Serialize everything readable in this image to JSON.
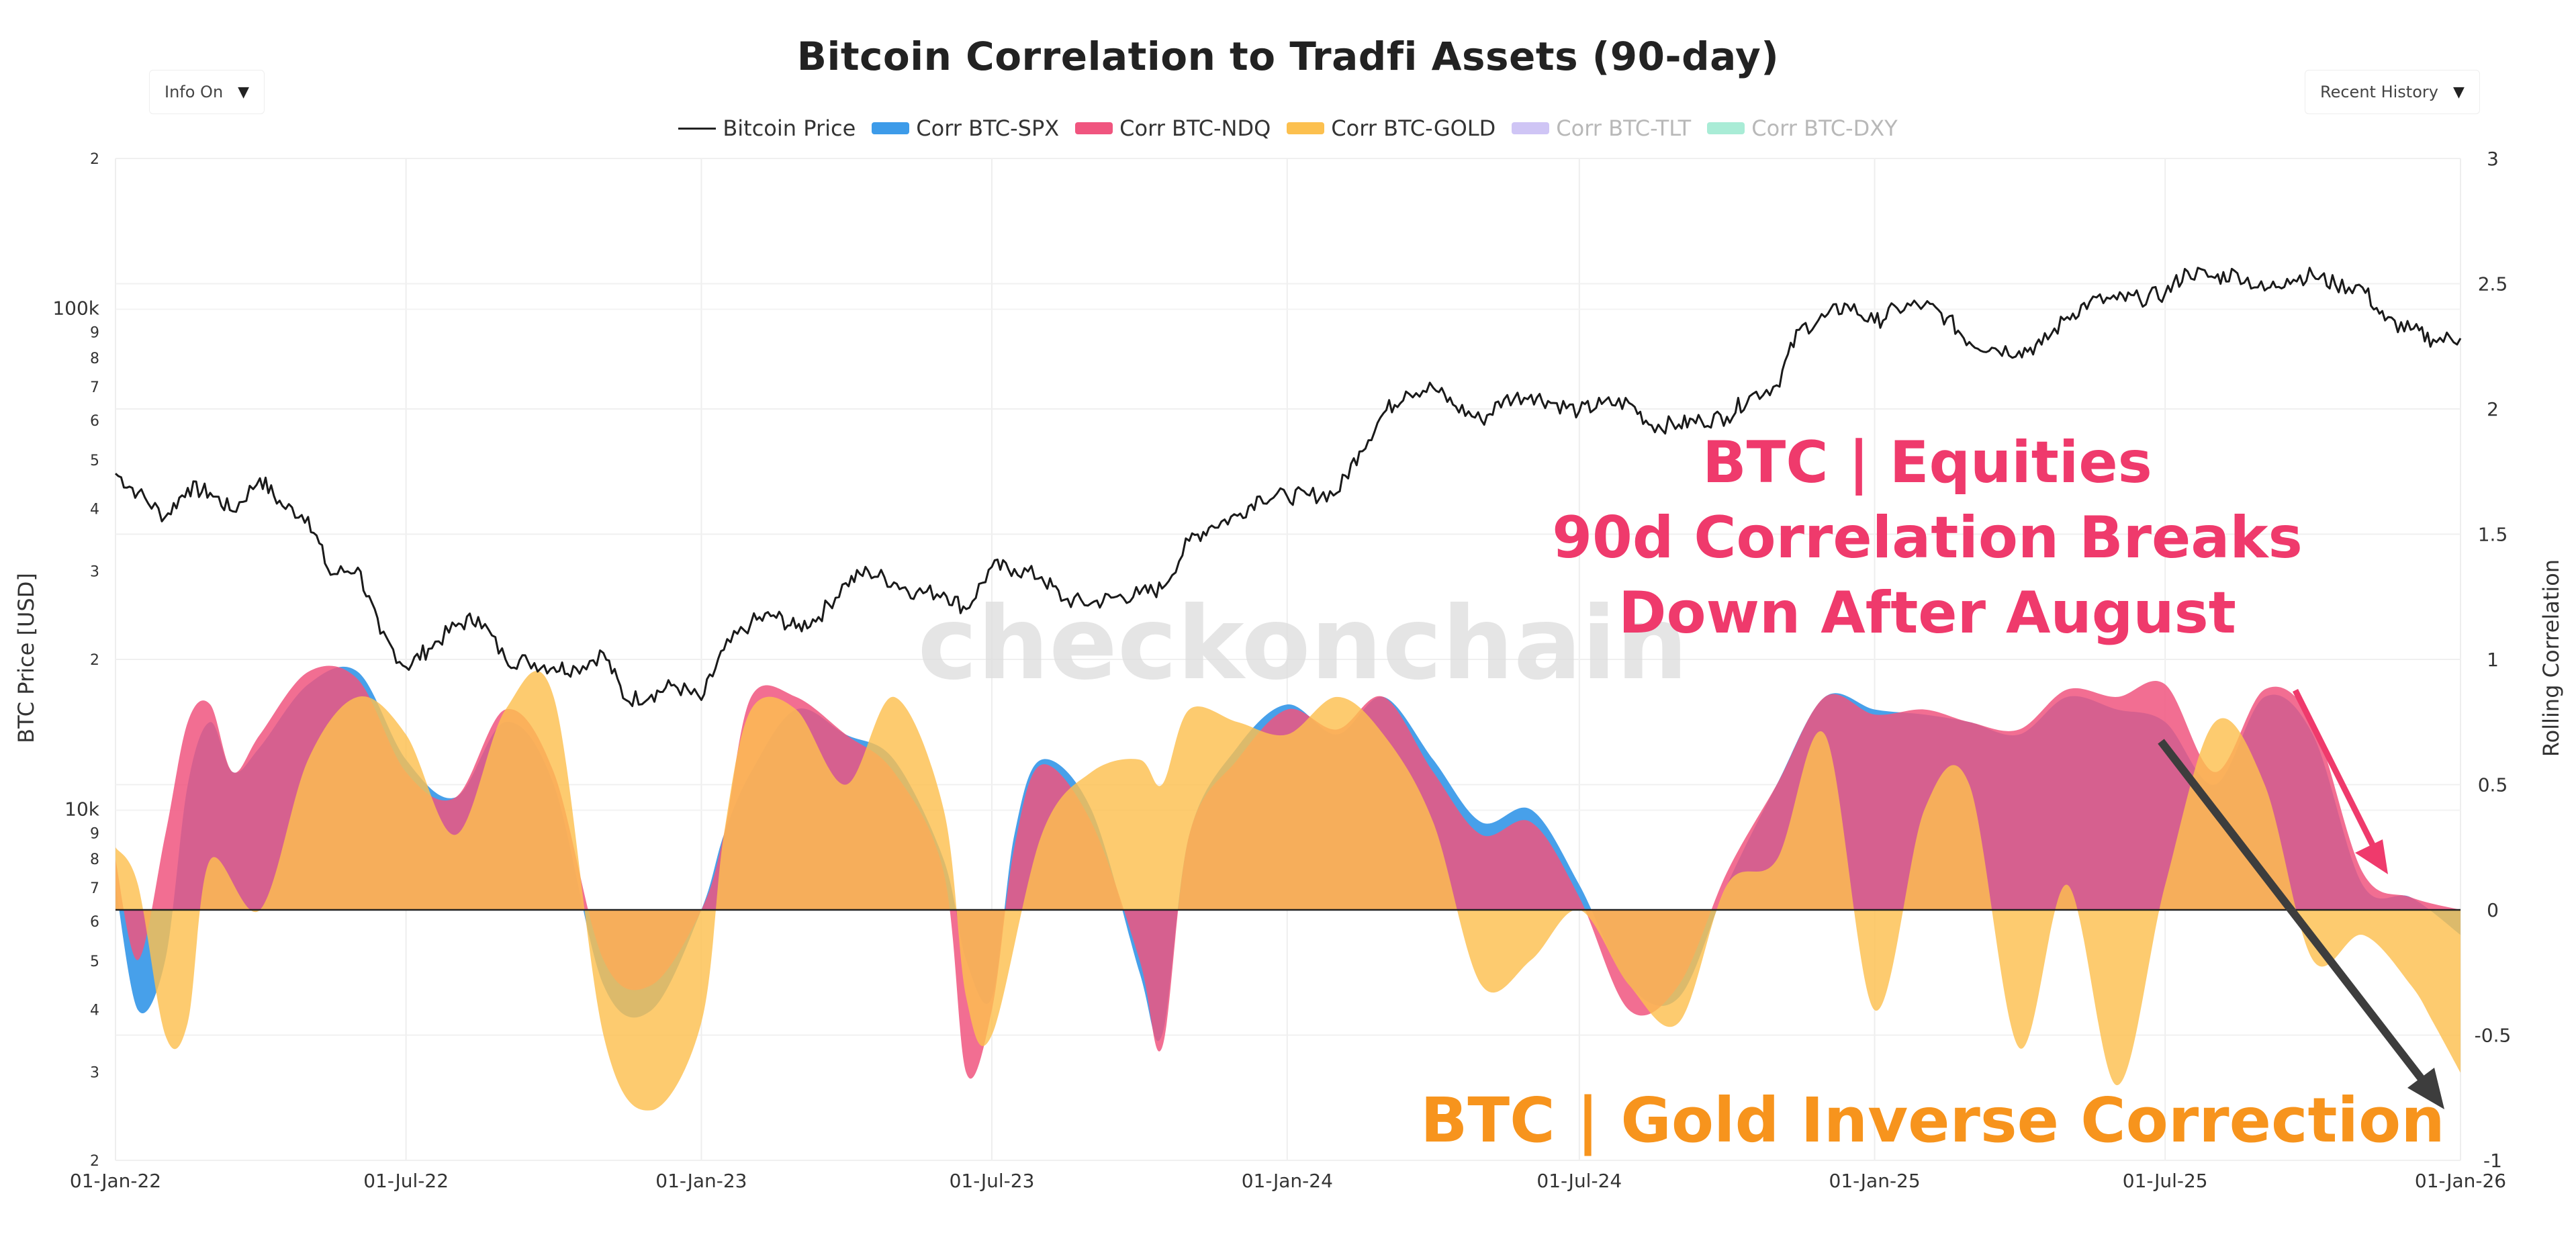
{
  "controls": {
    "info_label": "Info On",
    "history_label": "Recent History"
  },
  "watermark": "checkonchain",
  "colors": {
    "price": "#1a1a1a",
    "spx": "#3d9be9",
    "ndq": "#f0557f",
    "gold": "#fcc04f",
    "tlt": "#cfc5f5",
    "dxy": "#a9ecd6",
    "annotation_pink": "#ef3a6c",
    "annotation_orange": "#f7941d",
    "arrow_dark": "#3d3d3d"
  },
  "annotations": {
    "equities_line1": "BTC | Equities",
    "equities_line2": "90d Correlation Breaks",
    "equities_line3": "Down After August",
    "gold_text": "BTC | Gold Inverse Correction"
  },
  "chart_data": {
    "type": "area",
    "title": "Bitcoin Correlation to Tradfi Assets (90-day)",
    "y_left_label": "BTC Price [USD]",
    "y_right_label": "Rolling Correlation",
    "y_left_scale": "log",
    "y_left_range": [
      2000,
      200000
    ],
    "y_left_ticks": [
      "2",
      "3",
      "4",
      "5",
      "6",
      "7",
      "8",
      "9",
      "10k",
      "2",
      "3",
      "4",
      "5",
      "6",
      "7",
      "8",
      "9",
      "100k",
      "2"
    ],
    "y_right_range": [
      -1,
      3
    ],
    "y_right_ticks": [
      "-1",
      "-0.5",
      "0",
      "0.5",
      "1",
      "1.5",
      "2",
      "2.5",
      "3"
    ],
    "x_range": [
      "2022-01-01",
      "2026-01-01"
    ],
    "x_ticks": [
      "01-Jan-22",
      "01-Jul-22",
      "01-Jan-23",
      "01-Jul-23",
      "01-Jan-24",
      "01-Jul-24",
      "01-Jan-25",
      "01-Jul-25",
      "01-Jan-26"
    ],
    "grid": true,
    "legend_position": "top-center",
    "legend": [
      {
        "name": "Bitcoin Price",
        "visible": true
      },
      {
        "name": "Corr BTC-SPX",
        "visible": true
      },
      {
        "name": "Corr BTC-NDQ",
        "visible": true
      },
      {
        "name": "Corr BTC-GOLD",
        "visible": true
      },
      {
        "name": "Corr BTC-TLT",
        "visible": false
      },
      {
        "name": "Corr BTC-DXY",
        "visible": false
      }
    ],
    "price_series": {
      "x": [
        "2022-01-01",
        "2022-01-15",
        "2022-02-01",
        "2022-02-15",
        "2022-03-01",
        "2022-03-15",
        "2022-04-01",
        "2022-04-15",
        "2022-05-01",
        "2022-05-15",
        "2022-06-01",
        "2022-06-15",
        "2022-07-01",
        "2022-07-15",
        "2022-08-01",
        "2022-08-15",
        "2022-09-01",
        "2022-09-15",
        "2022-10-01",
        "2022-10-15",
        "2022-11-01",
        "2022-11-15",
        "2022-12-01",
        "2022-12-15",
        "2023-01-01",
        "2023-01-15",
        "2023-02-01",
        "2023-02-15",
        "2023-03-01",
        "2023-03-15",
        "2023-04-01",
        "2023-04-15",
        "2023-05-01",
        "2023-05-15",
        "2023-06-01",
        "2023-06-15",
        "2023-07-01",
        "2023-07-15",
        "2023-08-01",
        "2023-08-15",
        "2023-09-01",
        "2023-09-15",
        "2023-10-01",
        "2023-10-15",
        "2023-11-01",
        "2023-11-15",
        "2023-12-01",
        "2023-12-15",
        "2024-01-01",
        "2024-01-15",
        "2024-02-01",
        "2024-02-15",
        "2024-03-01",
        "2024-03-15",
        "2024-04-01",
        "2024-04-15",
        "2024-05-01",
        "2024-05-15",
        "2024-06-01",
        "2024-06-15",
        "2024-07-01",
        "2024-07-15",
        "2024-08-01",
        "2024-08-15",
        "2024-09-01",
        "2024-09-15",
        "2024-10-01",
        "2024-10-15",
        "2024-11-01",
        "2024-11-15",
        "2024-12-01",
        "2024-12-15",
        "2025-01-01",
        "2025-01-15",
        "2025-02-01",
        "2025-02-15",
        "2025-03-01",
        "2025-03-15",
        "2025-04-01",
        "2025-04-15",
        "2025-05-01",
        "2025-05-15",
        "2025-06-01",
        "2025-06-15",
        "2025-07-01",
        "2025-07-15",
        "2025-08-01",
        "2025-08-15",
        "2025-09-01",
        "2025-09-15",
        "2025-10-01",
        "2025-10-15",
        "2025-11-01",
        "2025-11-15",
        "2025-12-01",
        "2025-12-15",
        "2026-01-01"
      ],
      "values": [
        47000,
        43000,
        38500,
        44000,
        43000,
        39500,
        46000,
        40500,
        38500,
        29500,
        30500,
        22500,
        19300,
        21000,
        23300,
        24300,
        20000,
        19800,
        19300,
        19200,
        20600,
        16600,
        17000,
        17800,
        16600,
        20900,
        23700,
        24500,
        23100,
        24300,
        28400,
        30000,
        28500,
        27200,
        27200,
        25200,
        30600,
        30300,
        29200,
        26300,
        25900,
        26600,
        27000,
        27700,
        34500,
        37000,
        38700,
        42300,
        42300,
        42500,
        43000,
        52000,
        62000,
        68500,
        69700,
        64000,
        60000,
        66000,
        67500,
        65000,
        62600,
        64700,
        65000,
        58700,
        58900,
        60000,
        61000,
        67000,
        70500,
        91000,
        96500,
        102000,
        94000,
        100500,
        102000,
        96000,
        86000,
        83800,
        82500,
        85000,
        96500,
        103500,
        104600,
        105000,
        107500,
        119000,
        115500,
        118000,
        109000,
        115000,
        117000,
        112000,
        110500,
        95000,
        91000,
        87000,
        87500
      ]
    },
    "correlation_series": [
      {
        "name": "Corr BTC-SPX",
        "x": [
          "2022-01-01",
          "2022-01-15",
          "2022-02-01",
          "2022-02-15",
          "2022-03-01",
          "2022-03-15",
          "2022-04-01",
          "2022-05-01",
          "2022-06-01",
          "2022-07-01",
          "2022-08-01",
          "2022-09-01",
          "2022-10-01",
          "2022-11-01",
          "2022-12-01",
          "2023-01-01",
          "2023-01-15",
          "2023-02-01",
          "2023-03-01",
          "2023-04-01",
          "2023-05-01",
          "2023-06-01",
          "2023-06-15",
          "2023-07-01",
          "2023-07-15",
          "2023-08-01",
          "2023-09-01",
          "2023-10-01",
          "2023-10-15",
          "2023-11-01",
          "2023-12-01",
          "2024-01-01",
          "2024-02-01",
          "2024-03-01",
          "2024-04-01",
          "2024-05-01",
          "2024-06-01",
          "2024-07-01",
          "2024-08-01",
          "2024-09-01",
          "2024-10-01",
          "2024-11-01",
          "2024-12-01",
          "2025-01-01",
          "2025-02-01",
          "2025-03-01",
          "2025-04-01",
          "2025-05-01",
          "2025-06-01",
          "2025-07-01",
          "2025-08-01",
          "2025-09-01",
          "2025-10-01",
          "2025-11-01",
          "2025-12-01",
          "2026-01-01"
        ],
        "values": [
          0.1,
          -0.4,
          -0.2,
          0.5,
          0.75,
          0.55,
          0.65,
          0.9,
          0.95,
          0.6,
          0.45,
          0.75,
          0.5,
          -0.3,
          -0.4,
          0.0,
          0.3,
          0.55,
          0.8,
          0.7,
          0.6,
          0.2,
          -0.2,
          -0.35,
          0.3,
          0.6,
          0.4,
          -0.25,
          -0.5,
          0.3,
          0.65,
          0.82,
          0.7,
          0.85,
          0.6,
          0.35,
          0.4,
          0.1,
          -0.3,
          -0.35,
          0.1,
          0.5,
          0.85,
          0.8,
          0.78,
          0.75,
          0.7,
          0.85,
          0.8,
          0.75,
          0.5,
          0.85,
          0.7,
          0.1,
          0.05,
          -0.1
        ]
      },
      {
        "name": "Corr BTC-NDQ",
        "x": [
          "2022-01-01",
          "2022-01-15",
          "2022-02-01",
          "2022-02-15",
          "2022-03-01",
          "2022-03-15",
          "2022-04-01",
          "2022-05-01",
          "2022-06-01",
          "2022-07-01",
          "2022-08-01",
          "2022-09-01",
          "2022-10-01",
          "2022-11-01",
          "2022-12-01",
          "2023-01-01",
          "2023-01-15",
          "2023-02-01",
          "2023-03-01",
          "2023-04-01",
          "2023-05-01",
          "2023-06-01",
          "2023-06-15",
          "2023-07-01",
          "2023-07-15",
          "2023-08-01",
          "2023-09-01",
          "2023-10-01",
          "2023-10-15",
          "2023-11-01",
          "2023-12-01",
          "2024-01-01",
          "2024-02-01",
          "2024-03-01",
          "2024-04-01",
          "2024-05-01",
          "2024-06-01",
          "2024-07-01",
          "2024-08-01",
          "2024-09-01",
          "2024-10-01",
          "2024-11-01",
          "2024-12-01",
          "2025-01-01",
          "2025-02-01",
          "2025-03-01",
          "2025-04-01",
          "2025-05-01",
          "2025-06-01",
          "2025-07-01",
          "2025-08-01",
          "2025-09-01",
          "2025-10-01",
          "2025-11-01",
          "2025-12-01",
          "2026-01-01"
        ],
        "values": [
          0.2,
          -0.2,
          0.3,
          0.75,
          0.82,
          0.55,
          0.7,
          0.95,
          0.92,
          0.55,
          0.45,
          0.8,
          0.55,
          -0.2,
          -0.3,
          0.0,
          0.3,
          0.85,
          0.85,
          0.7,
          0.55,
          0.15,
          -0.65,
          -0.4,
          0.25,
          0.58,
          0.35,
          -0.2,
          -0.55,
          0.3,
          0.6,
          0.8,
          0.72,
          0.85,
          0.55,
          0.3,
          0.35,
          0.05,
          -0.4,
          -0.3,
          0.15,
          0.5,
          0.85,
          0.78,
          0.8,
          0.75,
          0.72,
          0.88,
          0.85,
          0.9,
          0.55,
          0.88,
          0.75,
          0.15,
          0.05,
          0.0
        ]
      },
      {
        "name": "Corr BTC-GOLD",
        "x": [
          "2022-01-01",
          "2022-01-15",
          "2022-02-01",
          "2022-02-15",
          "2022-03-01",
          "2022-04-01",
          "2022-05-01",
          "2022-06-01",
          "2022-07-01",
          "2022-08-01",
          "2022-09-01",
          "2022-10-01",
          "2022-11-01",
          "2022-12-01",
          "2023-01-01",
          "2023-01-15",
          "2023-02-01",
          "2023-03-01",
          "2023-04-01",
          "2023-05-01",
          "2023-06-01",
          "2023-06-15",
          "2023-07-01",
          "2023-08-01",
          "2023-09-01",
          "2023-10-01",
          "2023-10-15",
          "2023-11-01",
          "2023-12-01",
          "2024-01-01",
          "2024-02-01",
          "2024-03-01",
          "2024-04-01",
          "2024-05-01",
          "2024-06-01",
          "2024-07-01",
          "2024-08-01",
          "2024-09-01",
          "2024-10-01",
          "2024-11-01",
          "2024-12-01",
          "2025-01-01",
          "2025-02-01",
          "2025-03-01",
          "2025-04-01",
          "2025-05-01",
          "2025-06-01",
          "2025-07-01",
          "2025-08-01",
          "2025-09-01",
          "2025-10-01",
          "2025-11-01",
          "2025-12-01",
          "2025-12-15",
          "2026-01-01"
        ],
        "values": [
          0.25,
          0.1,
          -0.5,
          -0.45,
          0.2,
          0.0,
          0.6,
          0.85,
          0.7,
          0.3,
          0.8,
          0.85,
          -0.5,
          -0.8,
          -0.45,
          0.3,
          0.8,
          0.8,
          0.5,
          0.85,
          0.4,
          -0.35,
          -0.5,
          0.3,
          0.55,
          0.6,
          0.5,
          0.8,
          0.75,
          0.7,
          0.85,
          0.7,
          0.35,
          -0.3,
          -0.2,
          0.0,
          -0.3,
          -0.45,
          0.1,
          0.2,
          0.7,
          -0.4,
          0.4,
          0.5,
          -0.55,
          0.1,
          -0.7,
          0.1,
          0.75,
          0.5,
          -0.2,
          -0.1,
          -0.3,
          -0.45,
          -0.65
        ]
      }
    ]
  }
}
